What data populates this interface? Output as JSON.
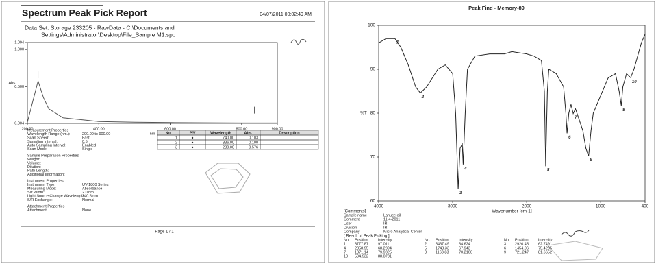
{
  "left": {
    "title": "Spectrum Peak Pick Report",
    "timestamp": "04/07/2011 00:02:49 AM",
    "dataset": [
      "Data Set: Storage 233205 - RawData - C:\\Documents and",
      "Settings\\Administrator\\Desktop\\File_Sample M1.spc"
    ],
    "chart": {
      "type": "line",
      "ylabel": "Abs.",
      "xlabel": "nm",
      "x": [
        200,
        215,
        230,
        245,
        260,
        300,
        400,
        500,
        600,
        700,
        800,
        900
      ],
      "values": [
        0.02,
        0.3,
        0.576,
        0.35,
        0.2,
        0.08,
        0.03,
        0.02,
        0.015,
        0.012,
        0.01,
        0.01
      ],
      "xlim": [
        200,
        900
      ],
      "ylim": [
        0.004,
        1.094
      ],
      "xticks": [
        {
          "value": 200,
          "label": "200.00"
        },
        {
          "value": 400,
          "label": "400.00"
        },
        {
          "value": 600,
          "label": "600.00"
        },
        {
          "value": 800,
          "label": "800.00"
        },
        {
          "value": 900,
          "label": "900.00"
        }
      ],
      "yticks": [
        0.004,
        {
          "value": 0.5,
          "label": "0.500"
        },
        {
          "value": 1,
          "label": "1.000"
        },
        1.094
      ],
      "color": "#555"
    },
    "peak_table": {
      "columns": [
        "No.",
        "P/V",
        "Wavelength",
        "Abs.",
        "Description"
      ],
      "rows": [
        [
          "1",
          "●",
          "740.00",
          "0.103"
        ],
        [
          "2",
          "●",
          "836.00",
          "0.100"
        ],
        [
          "3",
          "●",
          "230.00",
          "0.576"
        ]
      ]
    },
    "properties": [
      {
        "heading": "Measurement Properties",
        "items": [
          [
            "Wavelength Range (nm.):",
            "200.00 to 900.00"
          ],
          [
            "Scan Speed:",
            "Fast"
          ],
          [
            "Sampling Interval:",
            "0.5"
          ],
          [
            "Auto Sampling Interval:",
            "Enabled"
          ],
          [
            "Scan Mode:",
            "Single"
          ]
        ]
      },
      {
        "heading": "Sample Preparation Properties",
        "items": [
          [
            "Weight:"
          ],
          [
            "Volume:"
          ],
          [
            "Dilution:"
          ],
          [
            "Path Length:"
          ],
          [
            "Additional Information:"
          ]
        ]
      },
      {
        "heading": "Instrument Properties",
        "items": [
          [
            "Instrument Type:",
            "UV-1800 Series"
          ],
          [
            "Measuring Mode:",
            "Absorbance"
          ],
          [
            "Slit Width:",
            "2.0 nm"
          ],
          [
            "Light Source Change Wavelength:",
            "340.8 nm"
          ],
          [
            "S/R Exchange:",
            "Normal"
          ]
        ]
      },
      {
        "heading": "Attachment Properties",
        "items": [
          [
            "Attachment:",
            "None"
          ]
        ]
      }
    ],
    "footer": "Page 1 / 1"
  },
  "right": {
    "title": "Peak Find - Memory-89",
    "chart": {
      "type": "line",
      "ylabel": "%T",
      "xlabel": "Wavenumber [cm-1]",
      "x": [
        4000,
        3900,
        3780,
        3700,
        3600,
        3500,
        3437,
        3350,
        3200,
        3100,
        3000,
        2960,
        2926,
        2900,
        2870,
        2858,
        2830,
        2800,
        2700,
        2500,
        2300,
        2200,
        2000,
        1900,
        1800,
        1760,
        1743,
        1720,
        1700,
        1600,
        1500,
        1470,
        1454,
        1430,
        1400,
        1371,
        1340,
        1300,
        1240,
        1200,
        1163,
        1130,
        1100,
        1000,
        900,
        800,
        750,
        721,
        700,
        650,
        594,
        550,
        450,
        400
      ],
      "values": [
        96,
        97,
        97,
        95,
        91,
        86,
        84.6,
        86,
        90,
        91,
        89,
        80,
        62.7,
        72,
        73,
        68.3,
        80,
        90,
        93,
        93.5,
        93.5,
        94,
        93.5,
        93,
        92,
        85,
        67.9,
        85,
        90,
        89,
        86,
        80,
        75.4,
        80,
        82,
        79.9,
        81,
        79,
        76,
        72,
        70.2,
        76,
        80,
        84,
        88,
        89,
        85,
        81.7,
        86,
        89,
        88.1,
        90,
        96,
        98
      ],
      "xlim": [
        4000,
        400
      ],
      "ylim": [
        60,
        100
      ],
      "xticks": [
        4000,
        3000,
        2000,
        1000,
        400
      ],
      "yticks": [
        60,
        70,
        80,
        90,
        100
      ],
      "color": "#222"
    },
    "comments_heading": "[Comments]",
    "comments": [
      [
        "Sample name",
        "Lahuce oil"
      ],
      [
        "Comment",
        "11-4-2011"
      ],
      [
        "User",
        "IR"
      ],
      [
        "Division",
        "IR"
      ],
      [
        "Company",
        "Micro Analytical Center"
      ]
    ],
    "peaks_heading": "[ Result of Peak Picking ]",
    "peak_columns": [
      "No.",
      "Position",
      "Intensity"
    ],
    "peaks": [
      {
        "no": 1,
        "position": 3777.87,
        "intensity": 97.011
      },
      {
        "no": 2,
        "position": 3437.49,
        "intensity": 84.624
      },
      {
        "no": 3,
        "position": 2926.45,
        "intensity": 62.7491
      },
      {
        "no": 4,
        "position": 2858.95,
        "intensity": 68.2894
      },
      {
        "no": 5,
        "position": 1743.33,
        "intensity": 67.943
      },
      {
        "no": 6,
        "position": 1454.06,
        "intensity": 75.4235
      },
      {
        "no": 7,
        "position": 1371.14,
        "intensity": 79.9325
      },
      {
        "no": 8,
        "position": 1163.83,
        "intensity": 70.2166
      },
      {
        "no": 9,
        "position": 721.247,
        "intensity": 81.6652
      },
      {
        "no": 10,
        "position": 594.932,
        "intensity": 88.0781
      }
    ]
  }
}
